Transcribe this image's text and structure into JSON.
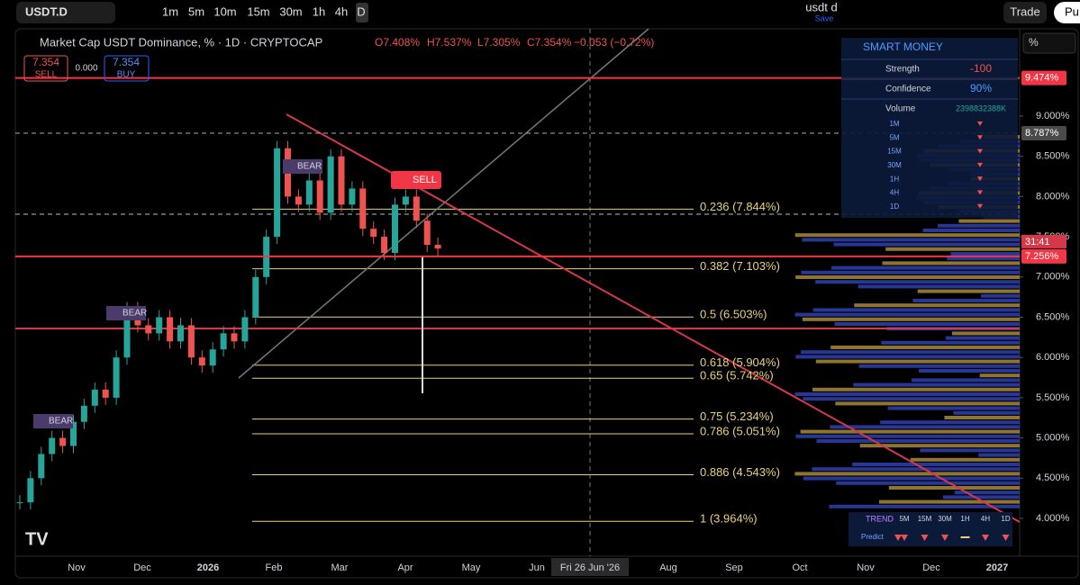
{
  "toolbar": {
    "symbol": "USDT.D",
    "intervals": [
      "1m",
      "5m",
      "10m",
      "15m",
      "30m",
      "1h",
      "4h",
      "D"
    ],
    "layout_name": "usdt d",
    "save": "Save",
    "trade": "Trade",
    "publish": "Pu"
  },
  "legend": {
    "title": "Market Cap USDT Dominance, % · 1D · CRYPTOCAP",
    "open": "O7.408%",
    "high": "H7.537%",
    "low": "L7.305%",
    "close": "C7.354%",
    "change": "−0.053 (−0.72%)"
  },
  "order": {
    "sell_price": "7.354",
    "sell": "SELL",
    "spread": "0.000",
    "buy_price": "7.354",
    "buy": "BUY"
  },
  "annotations": {
    "bear_1": "BEAR",
    "bear_2": "BEAR",
    "bear_3": "BEAR",
    "sell": "SELL"
  },
  "scale_button": "%",
  "chart_data": {
    "type": "candlestick",
    "values": [
      4.2,
      4.5,
      4.8,
      5.0,
      4.9,
      5.2,
      5.4,
      5.6,
      5.5,
      6.0,
      6.6,
      6.4,
      6.3,
      6.5,
      6.2,
      6.4,
      6.0,
      5.9,
      6.1,
      6.3,
      6.2,
      6.5,
      7.0,
      7.5,
      8.6,
      8.0,
      7.9,
      8.2,
      7.8,
      8.5,
      7.9,
      8.1,
      7.6,
      7.5,
      7.3,
      7.9,
      8.0,
      7.7,
      7.4,
      7.354
    ],
    "ylim": [
      3.53,
      10.085
    ],
    "yticks": [
      {
        "value": 4,
        "label": "4.000%"
      },
      {
        "value": 4.5,
        "label": "4.500%"
      },
      {
        "value": 5,
        "label": "5.000%"
      },
      {
        "value": 5.5,
        "label": "5.500%"
      },
      {
        "value": 6,
        "label": "6.000%"
      },
      {
        "value": 6.5,
        "label": "6.500%"
      },
      {
        "value": 7,
        "label": "7.000%"
      },
      {
        "value": 7.5,
        "label": "7.500%"
      },
      {
        "value": 8,
        "label": "8.000%"
      },
      {
        "value": 8.5,
        "label": "8.500%"
      },
      {
        "value": 9,
        "label": "9.000%"
      }
    ],
    "time_labels": [
      "Nov",
      "Dec",
      "2026",
      "Feb",
      "Mar",
      "Apr",
      "May",
      "Jun",
      null,
      "Aug",
      "Sep",
      "Oct",
      "Nov",
      "Dec",
      "2027"
    ],
    "crosshair_label": "Fri 26 Jun '26",
    "price_markers": [
      {
        "value": 9.474,
        "label": "9.474%",
        "color": "#f23645"
      },
      {
        "value": 8.787,
        "label": "8.787%",
        "color": "#4a4a4a"
      },
      {
        "value": 7.256,
        "label": "7.256%",
        "color": "#f23645"
      }
    ],
    "countdown": "31:41",
    "fib_levels": [
      {
        "value": 7.844,
        "label": "0.236 (7.844%)"
      },
      {
        "value": 7.103,
        "label": "0.382 (7.103%)"
      },
      {
        "value": 6.503,
        "label": "0.5 (6.503%)"
      },
      {
        "value": 5.904,
        "label": "0.618 (5.904%)"
      },
      {
        "value": 5.742,
        "label": "0.65 (5.742%)"
      },
      {
        "value": 5.234,
        "label": "0.75 (5.234%)"
      },
      {
        "value": 5.051,
        "label": "0.786 (5.051%)"
      },
      {
        "value": 4.543,
        "label": "0.886 (4.543%)"
      },
      {
        "value": 3.964,
        "label": "1 (3.964%)"
      }
    ],
    "up_color": "#26a69a",
    "down_color": "#ef5350",
    "fib_color": "#e8d27a"
  },
  "smart_money": {
    "title": "SMART MONEY",
    "rows": [
      [
        "Strength",
        "-100"
      ],
      [
        "Confidence",
        "90%"
      ],
      [
        "Volume",
        "2398832388K"
      ]
    ],
    "timeframes": [
      "1M",
      "5M",
      "15M",
      "30M",
      "1H",
      "4H",
      "1D"
    ]
  },
  "trend": {
    "title": "TREND",
    "timeframes": [
      "5M",
      "15M",
      "30M",
      "1H",
      "4H",
      "1D"
    ],
    "predict": "Predict"
  }
}
